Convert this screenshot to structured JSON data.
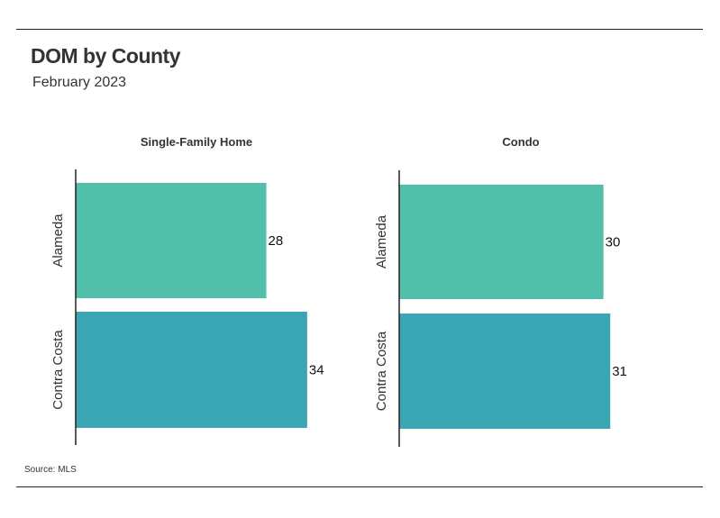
{
  "header": {
    "title": "DOM by County",
    "subtitle": "February 2023"
  },
  "footer": {
    "source": "Source: MLS"
  },
  "colors": {
    "alameda": "#52bfaa",
    "contra_costa": "#3ba6b3",
    "axis": "#222222",
    "text": "#333333"
  },
  "chart_data": [
    {
      "type": "bar",
      "orientation": "horizontal",
      "title": "Single-Family Home",
      "categories": [
        "Alameda",
        "Contra Costa"
      ],
      "values": [
        28,
        34
      ],
      "xlim": [
        0,
        36
      ]
    },
    {
      "type": "bar",
      "orientation": "horizontal",
      "title": "Condo",
      "categories": [
        "Alameda",
        "Contra Costa"
      ],
      "values": [
        30,
        31
      ],
      "xlim": [
        0,
        36
      ]
    }
  ]
}
